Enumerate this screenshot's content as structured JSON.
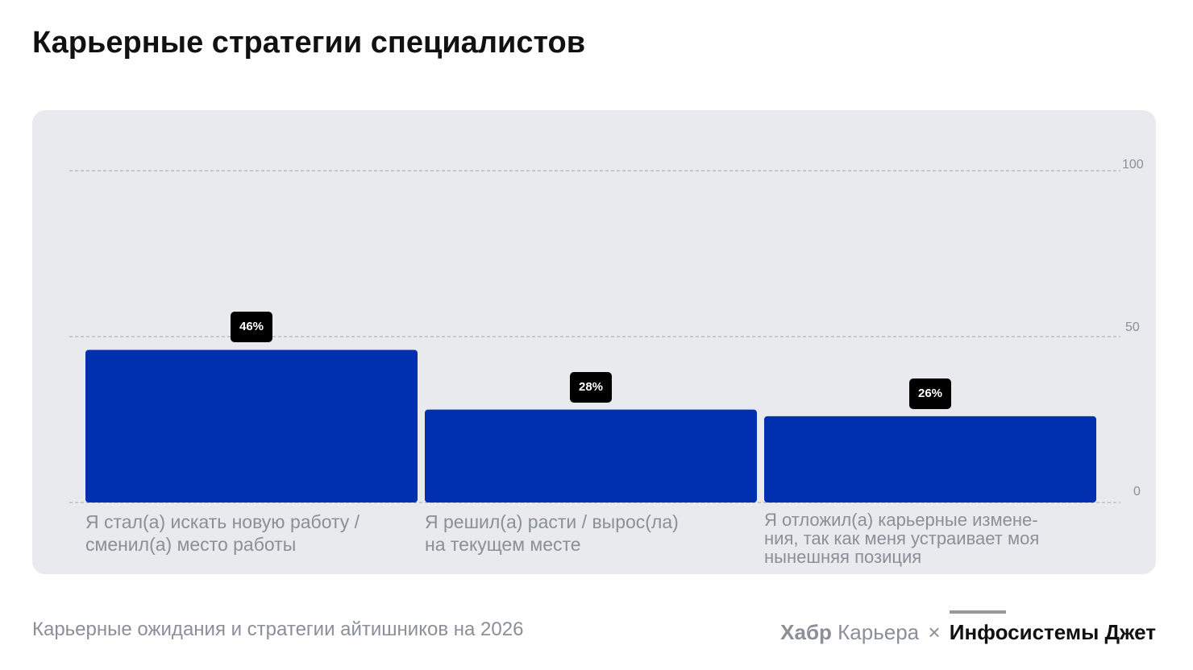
{
  "title": "Карьерные стратегии специалистов",
  "footer": {
    "source": "Карьерные ожидания и стратегии айтишников на 2026",
    "brand_habr": "Хабр",
    "brand_karera": "Карьера",
    "brand_times": "×",
    "brand_partner": "Инфосистемы Джет"
  },
  "colors": {
    "bar": "#0030b0",
    "panel": "#e8eaee",
    "badge": "#000000",
    "grid": "#a5a8ae"
  },
  "chart_data": {
    "type": "bar",
    "categories": [
      "Я стал(а) искать новую работу /\nсменил(а) место работы",
      "Я решил(а) расти / вырос(ла)\nна текущем месте",
      "Я отложил(а) карьерные измене-\nния, так как меня устраивает моя\nнынешняя позиция"
    ],
    "values": [
      46,
      28,
      26
    ],
    "value_labels": [
      "46%",
      "28%",
      "26%"
    ],
    "ylim": [
      0,
      100
    ],
    "yticks": [
      "0",
      "50",
      "100"
    ],
    "ytick_values": [
      0,
      50,
      100
    ],
    "grid": true,
    "xlabel": "",
    "ylabel": ""
  }
}
